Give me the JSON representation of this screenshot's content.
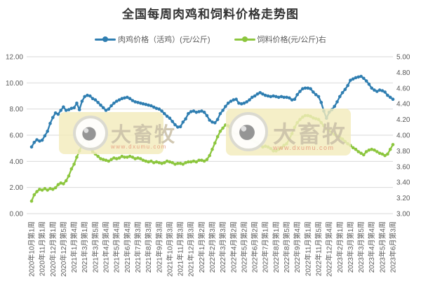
{
  "header": {
    "title": "全国每周肉鸡和饲料价格走势图"
  },
  "legend": [
    {
      "label": "肉鸡价格（活鸡）(元/公斤)",
      "color": "#2F7EB1"
    },
    {
      "label": "饲料价格(元/公斤)右",
      "color": "#8CC63E"
    }
  ],
  "watermark": {
    "brand": "大畜牧",
    "url": "www.dxumu.com"
  },
  "colors": {
    "grid": "#D9D9D9",
    "axis_text": "#595959",
    "title_text": "#333333",
    "watermark_box": "#F3EBBC",
    "watermark_ring": "#D9D9D1",
    "watermark_iris": "#8A8A8A",
    "watermark_text": "#CBC2A9",
    "watermark_url": "#E5997D"
  },
  "chart_data": {
    "type": "line",
    "title": "全国每周肉鸡和饲料价格走势图",
    "grid": true,
    "legend_position": "top",
    "label_every_n_points": 4,
    "x_tick_labels": [
      "2020年10月第1周",
      "2020年11月第1周",
      "2020年12月第1周",
      "2020年12月第5周",
      "2021年1月第4周",
      "2021年3月第1周",
      "2021年3月第5周",
      "2021年4月第4周",
      "2021年5月第4周",
      "2021年6月第4周",
      "2021年7月第3周",
      "2021年8月第3周",
      "2021年9月第3周",
      "2021年10月第3周",
      "2021年11月第3周",
      "2021年12月第3周",
      "2022年1月第2周",
      "2022年2月第3周",
      "2022年3月第3周",
      "2022年4月第2周",
      "2022年5月第2周",
      "2022年6月第2周",
      "2022年7月第1周",
      "2022年8月第1周",
      "2022年8月第5周",
      "2022年9月第4周",
      "2022年11月第1周",
      "2022年11月第5周",
      "2022年12月第4周",
      "2023年2月第1周",
      "2023年3月第1周",
      "2023年3月第5周",
      "2023年4月第4周",
      "2023年5月第4周",
      "2023年6月第3周"
    ],
    "left_axis": {
      "min": 0,
      "max": 12,
      "step": 2,
      "tick_labels": [
        "12.00",
        "10.00",
        "8.00",
        "6.00",
        "4.00",
        "2.00",
        "0.00"
      ]
    },
    "right_axis": {
      "min": 3,
      "max": 5,
      "step": 0.2,
      "tick_labels": [
        "5.00",
        "4.80",
        "4.60",
        "4.40",
        "4.20",
        "4.00",
        "3.80",
        "3.60",
        "3.40",
        "3.20",
        "3.00"
      ]
    },
    "series": [
      {
        "name": "肉鸡价格（活鸡）(元/公斤)",
        "axis": "left",
        "color": "#2F7EB1",
        "values": [
          5.1,
          5.45,
          5.65,
          5.55,
          5.62,
          5.95,
          6.3,
          6.9,
          7.35,
          7.7,
          7.6,
          7.9,
          8.16,
          7.9,
          7.95,
          8.05,
          8.1,
          8.45,
          7.95,
          8.6,
          8.95,
          9.05,
          9.0,
          8.8,
          8.7,
          8.5,
          8.3,
          8.1,
          7.9,
          8.0,
          8.25,
          8.45,
          8.6,
          8.7,
          8.8,
          8.85,
          8.9,
          8.8,
          8.65,
          8.55,
          8.5,
          8.45,
          8.4,
          8.35,
          8.3,
          8.25,
          8.15,
          8.05,
          8.0,
          7.85,
          7.65,
          7.45,
          7.3,
          7.05,
          6.8,
          6.62,
          6.65,
          7.0,
          7.25,
          7.65,
          7.8,
          7.85,
          7.75,
          7.8,
          7.85,
          7.75,
          7.5,
          7.15,
          7.0,
          6.95,
          7.2,
          7.65,
          7.9,
          8.2,
          8.45,
          8.6,
          8.7,
          8.75,
          8.45,
          8.4,
          8.45,
          8.55,
          8.7,
          8.9,
          9.0,
          9.15,
          9.25,
          9.15,
          9.05,
          9.0,
          8.95,
          9.0,
          8.95,
          8.9,
          8.95,
          8.9,
          8.9,
          8.85,
          8.7,
          8.75,
          9.1,
          9.35,
          9.55,
          9.6,
          9.6,
          9.55,
          9.3,
          9.1,
          8.95,
          8.5,
          7.85,
          7.3,
          7.75,
          7.95,
          8.2,
          8.55,
          8.95,
          9.25,
          9.5,
          9.8,
          10.2,
          10.3,
          10.4,
          10.45,
          10.5,
          10.35,
          10.15,
          9.9,
          9.6,
          9.45,
          9.35,
          9.45,
          9.4,
          9.3,
          9.05,
          8.9,
          8.75
        ]
      },
      {
        "name": "饲料价格(元/公斤)右",
        "axis": "right",
        "color": "#8CC63E",
        "values": [
          3.16,
          3.24,
          3.28,
          3.31,
          3.3,
          3.32,
          3.3,
          3.32,
          3.31,
          3.33,
          3.37,
          3.39,
          3.38,
          3.42,
          3.48,
          3.57,
          3.63,
          3.72,
          3.8,
          3.88,
          3.95,
          3.93,
          3.85,
          3.79,
          3.76,
          3.73,
          3.7,
          3.69,
          3.68,
          3.67,
          3.69,
          3.71,
          3.7,
          3.71,
          3.73,
          3.72,
          3.72,
          3.73,
          3.72,
          3.7,
          3.71,
          3.7,
          3.68,
          3.67,
          3.66,
          3.67,
          3.65,
          3.66,
          3.65,
          3.64,
          3.65,
          3.67,
          3.66,
          3.65,
          3.63,
          3.64,
          3.64,
          3.63,
          3.65,
          3.66,
          3.66,
          3.67,
          3.66,
          3.68,
          3.68,
          3.67,
          3.69,
          3.74,
          3.82,
          3.9,
          3.98,
          4.05,
          4.09,
          4.13,
          4.12,
          4.06,
          4.03,
          4.01,
          4.02,
          4.0,
          4.0,
          3.99,
          3.97,
          3.94,
          3.92,
          3.9,
          3.87,
          3.85,
          3.86,
          3.85,
          3.83,
          3.8,
          3.8,
          3.82,
          3.84,
          3.87,
          3.89,
          3.95,
          4.02,
          4.1,
          4.16,
          4.2,
          4.23,
          4.25,
          4.25,
          4.24,
          4.22,
          4.21,
          4.2,
          4.16,
          4.12,
          4.08,
          4.06,
          4.03,
          4.01,
          3.99,
          3.97,
          3.95,
          3.92,
          3.89,
          3.87,
          3.84,
          3.82,
          3.79,
          3.77,
          3.75,
          3.79,
          3.81,
          3.82,
          3.81,
          3.79,
          3.77,
          3.76,
          3.74,
          3.76,
          3.82,
          3.88
        ]
      }
    ]
  }
}
